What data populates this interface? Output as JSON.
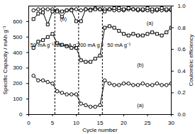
{
  "chart_data": {
    "type": "line",
    "x_label": "Cycle number",
    "y_label": "Specific Capacity / mAh g⁻¹",
    "y2_label": "Coulombic efficiency",
    "x": [
      1,
      2,
      3,
      4,
      5,
      6,
      7,
      8,
      9,
      10,
      11,
      12,
      13,
      14,
      15,
      16,
      17,
      18,
      19,
      20,
      21,
      22,
      23,
      24,
      25,
      26,
      27,
      28,
      29,
      30
    ],
    "xlim": [
      0,
      30
    ],
    "xticks": [
      0,
      5,
      10,
      15,
      20,
      25,
      30
    ],
    "ylim": [
      0,
      700
    ],
    "yticks": [
      0,
      100,
      200,
      300,
      400,
      500,
      600
    ],
    "y2lim": [
      0,
      1.0
    ],
    "y2ticks": [
      {
        "value": 0,
        "label": "0.0"
      },
      {
        "value": 0.2,
        "label": "0.2"
      },
      {
        "value": 0.4,
        "label": "0.4"
      },
      {
        "value": 0.6,
        "label": "0.6"
      },
      {
        "value": 0.8,
        "label": "0.8"
      },
      {
        "value": 1.0,
        "label": "1.0"
      }
    ],
    "series": [
      {
        "name": "(a)",
        "color": "#000000",
        "marker": "circle",
        "axis": "y",
        "values": [
          250,
          220,
          220,
          210,
          200,
          150,
          140,
          130,
          130,
          130,
          70,
          60,
          50,
          50,
          60,
          220,
          200,
          190,
          190,
          200,
          200,
          190,
          190,
          200,
          190,
          190,
          200,
          190,
          190,
          200
        ]
      },
      {
        "name": "(b)",
        "color": "#000000",
        "marker": "square",
        "axis": "y",
        "values": [
          430,
          470,
          480,
          500,
          520,
          460,
          450,
          440,
          430,
          430,
          350,
          340,
          340,
          360,
          380,
          560,
          570,
          560,
          540,
          520,
          510,
          520,
          510,
          510,
          520,
          530,
          520,
          510,
          530,
          560
        ]
      },
      {
        "name": "(a)",
        "color": "#000000",
        "marker": "circle",
        "axis": "y2",
        "values": [
          0.96,
          0.97,
          0.97,
          0.97,
          0.97,
          0.96,
          0.9,
          0.96,
          0.97,
          0.97,
          0.96,
          0.97,
          0.97,
          0.98,
          0.97,
          0.97,
          0.97,
          0.96,
          0.96,
          0.96,
          0.97,
          0.97,
          0.96,
          0.96,
          0.96,
          0.95,
          0.96,
          0.96,
          0.96,
          0.96
        ]
      },
      {
        "name": "(b)",
        "color": "#000000",
        "marker": "square",
        "axis": "y2",
        "values": [
          0.88,
          0.93,
          0.94,
          0.83,
          0.95,
          0.95,
          0.95,
          0.96,
          0.96,
          0.86,
          0.86,
          0.97,
          0.96,
          0.97,
          0.97,
          0.95,
          0.97,
          0.98,
          0.98,
          0.97,
          0.98,
          0.97,
          0.97,
          0.97,
          0.98,
          0.97,
          0.97,
          0.98,
          0.97,
          0.97
        ]
      }
    ],
    "vlines": [
      5.5,
      10.5,
      15.5
    ],
    "line_style": "dashed",
    "annotations": [
      {
        "text": "50 mA g⁻¹",
        "x": 2.8,
        "y": 450,
        "axis": "y"
      },
      {
        "text": "100 mA g⁻¹",
        "x": 8,
        "y": 450,
        "axis": "y"
      },
      {
        "text": "200 mA g⁻¹",
        "x": 13,
        "y": 450,
        "axis": "y"
      },
      {
        "text": "50 mA g⁻¹",
        "x": 19,
        "y": 450,
        "axis": "y"
      },
      {
        "text": "(b)",
        "x": 23.5,
        "y": 320,
        "axis": "y"
      },
      {
        "text": "(a)",
        "x": 23.5,
        "y": 60,
        "axis": "y"
      },
      {
        "text": "(b)",
        "x": 7.3,
        "y": 0.88,
        "axis": "y2"
      },
      {
        "text": "(a)",
        "x": 25.5,
        "y": 0.84,
        "axis": "y2"
      }
    ]
  }
}
